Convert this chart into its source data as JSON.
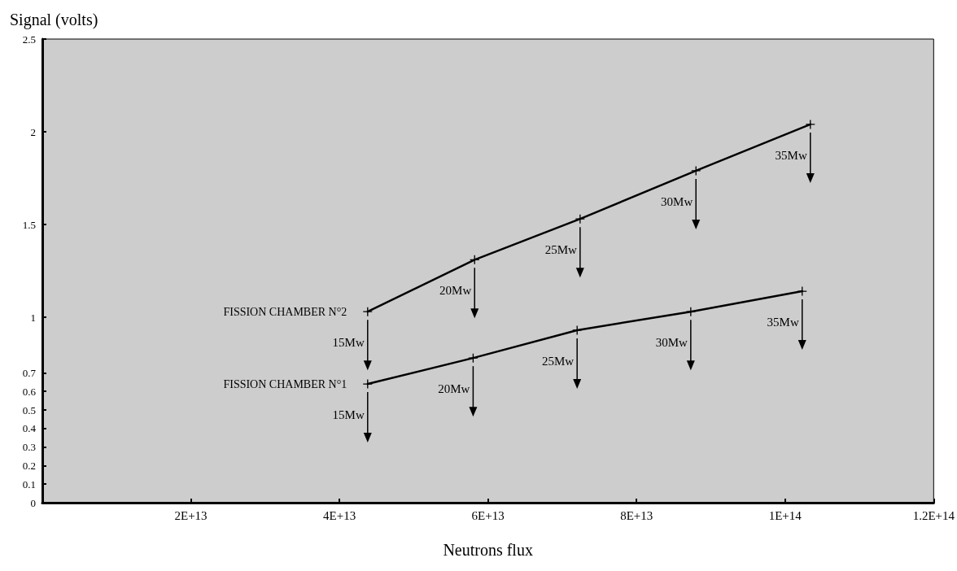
{
  "chart_data": {
    "type": "line",
    "xlabel": "Neutrons flux",
    "ylabel": "Signal (volts)",
    "xlim": [
      0,
      120000000000000.0
    ],
    "ylim": [
      0,
      2.5
    ],
    "xticks": [
      {
        "value": 20000000000000.0,
        "label": "2E+13"
      },
      {
        "value": 40000000000000.0,
        "label": "4E+13"
      },
      {
        "value": 60000000000000.0,
        "label": "6E+13"
      },
      {
        "value": 80000000000000.0,
        "label": "8E+13"
      },
      {
        "value": 100000000000000.0,
        "label": "1E+14"
      },
      {
        "value": 120000000000000.0,
        "label": "1.2E+14"
      }
    ],
    "yticks": [
      0,
      0.1,
      0.2,
      0.3,
      0.4,
      0.5,
      0.6,
      0.7,
      1,
      1.5,
      2,
      2.5
    ],
    "grid": false,
    "legend": false,
    "marker": "cross",
    "series": [
      {
        "name": "FISSION CHAMBER N°2",
        "color": "#000000",
        "x": [
          43800000000000.0,
          58200000000000.0,
          72400000000000.0,
          88000000000000.0,
          103400000000000.0
        ],
        "values": [
          1.03,
          1.31,
          1.53,
          1.79,
          2.04
        ]
      },
      {
        "name": "FISSION CHAMBER N°1",
        "color": "#000000",
        "x": [
          43800000000000.0,
          58000000000000.0,
          72000000000000.0,
          87300000000000.0,
          102300000000000.0
        ],
        "values": [
          0.64,
          0.78,
          0.93,
          1.03,
          1.14
        ]
      }
    ],
    "annotations": [
      {
        "text": "15Mw",
        "x": 43800000000000.0,
        "y": 1.03
      },
      {
        "text": "20Mw",
        "x": 58200000000000.0,
        "y": 1.31
      },
      {
        "text": "25Mw",
        "x": 72400000000000.0,
        "y": 1.53
      },
      {
        "text": "30Mw",
        "x": 88000000000000.0,
        "y": 1.79
      },
      {
        "text": "35Mw",
        "x": 103400000000000.0,
        "y": 2.04
      },
      {
        "text": "15Mw",
        "x": 43800000000000.0,
        "y": 0.64
      },
      {
        "text": "20Mw",
        "x": 58000000000000.0,
        "y": 0.78
      },
      {
        "text": "25Mw",
        "x": 72000000000000.0,
        "y": 0.93
      },
      {
        "text": "30Mw",
        "x": 87300000000000.0,
        "y": 1.03
      },
      {
        "text": "35Mw",
        "x": 102300000000000.0,
        "y": 1.14
      }
    ]
  }
}
